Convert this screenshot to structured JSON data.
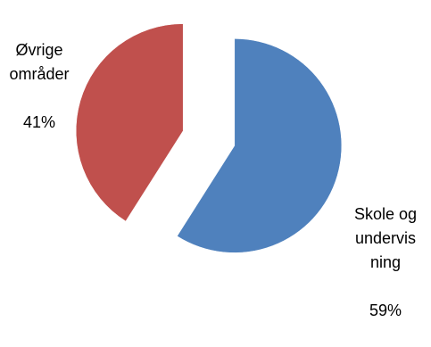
{
  "chart_data": {
    "type": "pie",
    "title": "",
    "categories": [
      "Skole og undervisning",
      "Øvrige områder"
    ],
    "values": [
      59,
      41
    ],
    "unit": "%",
    "colors": [
      "#4f81bd",
      "#c0504d"
    ],
    "exploded": true,
    "labels": [
      {
        "category_lines": "Skole og\nundervis\nning",
        "value_text": "59%"
      },
      {
        "category_lines": "Øvrige\nområder",
        "value_text": "41%"
      }
    ]
  }
}
